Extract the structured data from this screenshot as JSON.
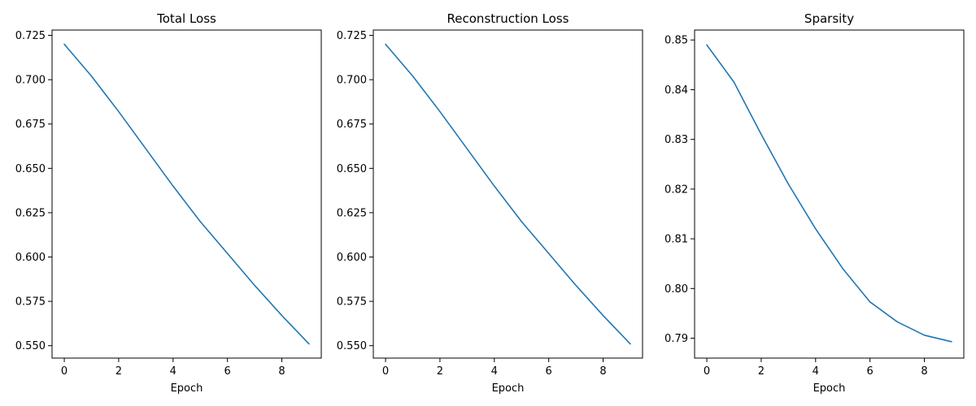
{
  "chart_data": [
    {
      "type": "line",
      "title": "Total Loss",
      "xlabel": "Epoch",
      "ylabel": "",
      "x": [
        0,
        1,
        2,
        3,
        4,
        5,
        6,
        7,
        8,
        9
      ],
      "series": [
        {
          "name": "",
          "color": "#1f77b4",
          "values": [
            0.72,
            0.702,
            0.682,
            0.661,
            0.64,
            0.62,
            0.602,
            0.584,
            0.567,
            0.551
          ]
        }
      ],
      "xlim": [
        -0.45,
        9.45
      ],
      "ylim": [
        0.543,
        0.728
      ],
      "xticks": [
        0,
        2,
        4,
        6,
        8
      ],
      "xtick_labels": [
        "0",
        "2",
        "4",
        "6",
        "8"
      ],
      "yticks": [
        0.55,
        0.575,
        0.6,
        0.625,
        0.65,
        0.675,
        0.7,
        0.725
      ],
      "ytick_labels": [
        "0.550",
        "0.575",
        "0.600",
        "0.625",
        "0.650",
        "0.675",
        "0.700",
        "0.725"
      ],
      "grid": false
    },
    {
      "type": "line",
      "title": "Reconstruction Loss",
      "xlabel": "Epoch",
      "ylabel": "",
      "x": [
        0,
        1,
        2,
        3,
        4,
        5,
        6,
        7,
        8,
        9
      ],
      "series": [
        {
          "name": "",
          "color": "#1f77b4",
          "values": [
            0.72,
            0.702,
            0.682,
            0.661,
            0.64,
            0.62,
            0.602,
            0.584,
            0.567,
            0.551
          ]
        }
      ],
      "xlim": [
        -0.45,
        9.45
      ],
      "ylim": [
        0.543,
        0.728
      ],
      "xticks": [
        0,
        2,
        4,
        6,
        8
      ],
      "xtick_labels": [
        "0",
        "2",
        "4",
        "6",
        "8"
      ],
      "yticks": [
        0.55,
        0.575,
        0.6,
        0.625,
        0.65,
        0.675,
        0.7,
        0.725
      ],
      "ytick_labels": [
        "0.550",
        "0.575",
        "0.600",
        "0.625",
        "0.650",
        "0.675",
        "0.700",
        "0.725"
      ],
      "grid": false
    },
    {
      "type": "line",
      "title": "Sparsity",
      "xlabel": "Epoch",
      "ylabel": "",
      "x": [
        0,
        1,
        2,
        3,
        4,
        5,
        6,
        7,
        8,
        9
      ],
      "series": [
        {
          "name": "",
          "color": "#1f77b4",
          "values": [
            0.849,
            0.8415,
            0.831,
            0.821,
            0.812,
            0.804,
            0.7973,
            0.7933,
            0.7906,
            0.7893
          ]
        }
      ],
      "xlim": [
        -0.45,
        9.45
      ],
      "ylim": [
        0.786,
        0.852
      ],
      "xticks": [
        0,
        2,
        4,
        6,
        8
      ],
      "xtick_labels": [
        "0",
        "2",
        "4",
        "6",
        "8"
      ],
      "yticks": [
        0.79,
        0.8,
        0.81,
        0.82,
        0.83,
        0.84,
        0.85
      ],
      "ytick_labels": [
        "0.79",
        "0.80",
        "0.81",
        "0.82",
        "0.83",
        "0.84",
        "0.85"
      ],
      "grid": false
    }
  ]
}
